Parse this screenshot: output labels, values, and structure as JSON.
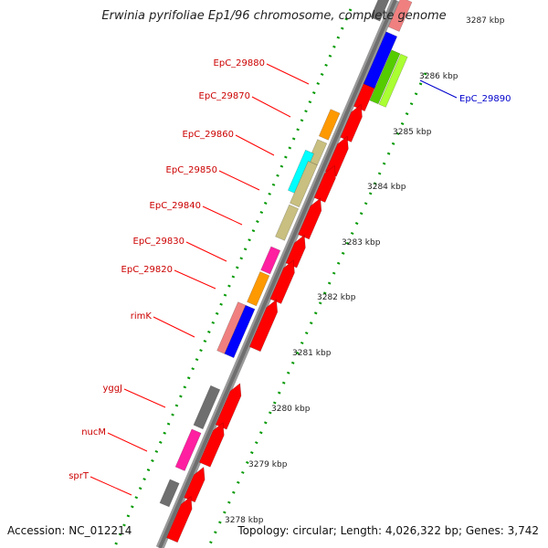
{
  "title": "Erwinia pyrifoliae Ep1/96 chromosome, complete genome",
  "footer": {
    "accession": "Accession: NC_012214",
    "topology": "Topology: circular; Length: 4,026,322 bp; Genes: 3,742"
  },
  "colors": {
    "red": "#ff0000",
    "orange": "#ff9900",
    "cyan": "#00ffff",
    "khaki": "#c8bf80",
    "magenta": "#ff1fa0",
    "salmon": "#f08080",
    "blue": "#0000ff",
    "gray": "#6f6f6f",
    "green": "#55cc00",
    "lime": "#aaff33",
    "tick": "#009900",
    "labelRed": "#cc0000",
    "labelBlue": "#0000cc"
  },
  "scale_ticks": [
    "3286 kbp",
    "3285 kbp",
    "3284 kbp",
    "3283 kbp",
    "3282 kbp",
    "3281 kbp",
    "3280 kbp",
    "3279 kbp",
    "3278 kbp",
    "3287 kbp"
  ],
  "gene_labels": [
    "EpC_29880",
    "EpC_29870",
    "EpC_29860",
    "EpC_29850",
    "EpC_29840",
    "EpC_29830",
    "EpC_29820",
    "rimK",
    "yggJ",
    "nucM",
    "sprT",
    "EpC_29890"
  ]
}
